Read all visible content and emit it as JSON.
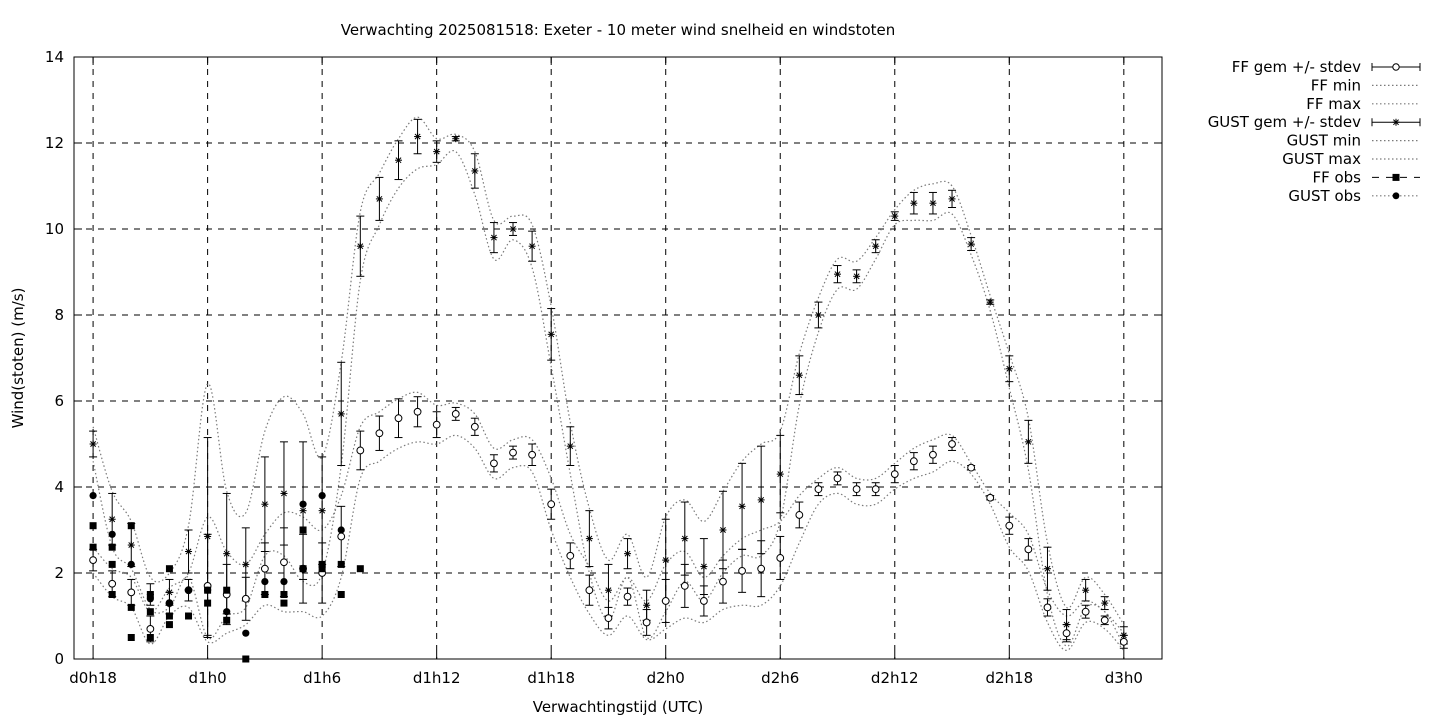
{
  "chart_data": {
    "type": "scatter",
    "title": "Verwachting 2025081518: Exeter - 10 meter wind snelheid en windstoten",
    "xlabel": "Verwachtingstijd (UTC)",
    "ylabel": "Wind(stoten) (m/s)",
    "ylim": [
      0,
      14
    ],
    "xlim": [
      -1,
      56
    ],
    "yticks": [
      0,
      2,
      4,
      6,
      8,
      10,
      12,
      14
    ],
    "xticks": [
      {
        "x": 0,
        "label": "d0h18"
      },
      {
        "x": 6,
        "label": "d1h0"
      },
      {
        "x": 12,
        "label": "d1h6"
      },
      {
        "x": 18,
        "label": "d1h12"
      },
      {
        "x": 24,
        "label": "d1h18"
      },
      {
        "x": 30,
        "label": "d2h0"
      },
      {
        "x": 36,
        "label": "d2h6"
      },
      {
        "x": 42,
        "label": "d2h12"
      },
      {
        "x": 48,
        "label": "d2h18"
      },
      {
        "x": 54,
        "label": "d3h0"
      }
    ],
    "grid": true,
    "legend_position": "right-outside",
    "legend": [
      {
        "label": "FF gem +/- stdev",
        "key": "ff_mean"
      },
      {
        "label": "FF min",
        "key": "ff_min"
      },
      {
        "label": "FF max",
        "key": "ff_max"
      },
      {
        "label": "GUST gem +/- stdev",
        "key": "gust_mean"
      },
      {
        "label": "GUST min",
        "key": "gust_min"
      },
      {
        "label": "GUST max",
        "key": "gust_max"
      },
      {
        "label": "FF obs",
        "key": "ff_obs"
      },
      {
        "label": "GUST obs",
        "key": "gust_obs"
      }
    ],
    "ff_mean": {
      "x": [
        0,
        1,
        2,
        3,
        4,
        5,
        6,
        7,
        8,
        9,
        10,
        11,
        12,
        13,
        14,
        15,
        16,
        17,
        18,
        19,
        20,
        21,
        22,
        23,
        24,
        25,
        26,
        27,
        28,
        29,
        30,
        31,
        32,
        33,
        34,
        35,
        36,
        37,
        38,
        39,
        40,
        41,
        42,
        43,
        44,
        45,
        46,
        47,
        48,
        49,
        50,
        51,
        52,
        53,
        54
      ],
      "y": [
        2.3,
        1.75,
        1.55,
        0.7,
        1.3,
        1.6,
        1.7,
        1.5,
        1.4,
        2.1,
        2.25,
        2.1,
        2.0,
        2.85,
        4.85,
        5.25,
        5.6,
        5.75,
        5.45,
        5.7,
        5.4,
        4.55,
        4.8,
        4.75,
        3.6,
        2.4,
        1.6,
        0.95,
        1.45,
        0.85,
        1.35,
        1.7,
        1.35,
        1.8,
        2.05,
        2.1,
        2.35,
        3.35,
        3.95,
        4.2,
        3.95,
        3.95,
        4.3,
        4.6,
        4.75,
        5.0,
        4.45,
        3.75,
        3.1,
        2.55,
        1.2,
        0.6,
        1.1,
        0.9,
        0.4
      ],
      "sd": [
        0.25,
        0.3,
        0.3,
        0.3,
        0.25,
        0.25,
        1.2,
        0.7,
        0.5,
        0.6,
        0.8,
        0.8,
        0.7,
        0.7,
        0.45,
        0.4,
        0.45,
        0.35,
        0.3,
        0.15,
        0.2,
        0.2,
        0.15,
        0.25,
        0.35,
        0.3,
        0.35,
        0.25,
        0.2,
        0.3,
        0.5,
        0.5,
        0.35,
        0.5,
        0.5,
        0.65,
        0.5,
        0.3,
        0.15,
        0.15,
        0.15,
        0.15,
        0.2,
        0.2,
        0.2,
        0.15,
        0.05,
        0.05,
        0.2,
        0.25,
        0.2,
        0.2,
        0.15,
        0.1,
        0.15
      ]
    },
    "ff_min": {
      "x": [
        0,
        1,
        2,
        3,
        4,
        5,
        6,
        7,
        8,
        9,
        10,
        11,
        12,
        13,
        14,
        15,
        16,
        17,
        18,
        19,
        20,
        21,
        22,
        23,
        24,
        25,
        26,
        27,
        28,
        29,
        30,
        31,
        32,
        33,
        34,
        35,
        36,
        37,
        38,
        39,
        40,
        41,
        42,
        43,
        44,
        45,
        46,
        47,
        48,
        49,
        50,
        51,
        52,
        53,
        54
      ],
      "y": [
        2.0,
        1.45,
        1.2,
        0.35,
        1.0,
        1.2,
        0.4,
        0.6,
        0.8,
        1.25,
        1.1,
        1.1,
        1.0,
        1.9,
        4.2,
        4.6,
        4.9,
        5.05,
        5.0,
        5.2,
        4.9,
        4.2,
        4.45,
        4.35,
        3.0,
        1.9,
        1.05,
        0.55,
        1.0,
        0.45,
        0.7,
        0.95,
        0.85,
        1.15,
        1.25,
        1.25,
        1.7,
        2.7,
        3.6,
        3.85,
        3.6,
        3.6,
        3.95,
        4.2,
        4.35,
        4.6,
        4.3,
        3.6,
        2.6,
        2.05,
        0.85,
        0.2,
        0.85,
        0.7,
        0.2
      ]
    },
    "ff_max": {
      "x": [
        0,
        1,
        2,
        3,
        4,
        5,
        6,
        7,
        8,
        9,
        10,
        11,
        12,
        13,
        14,
        15,
        16,
        17,
        18,
        19,
        20,
        21,
        22,
        23,
        24,
        25,
        26,
        27,
        28,
        29,
        30,
        31,
        32,
        33,
        34,
        35,
        36,
        37,
        38,
        39,
        40,
        41,
        42,
        43,
        44,
        45,
        46,
        47,
        48,
        49,
        50,
        51,
        52,
        53,
        54
      ],
      "y": [
        2.6,
        2.1,
        1.9,
        1.1,
        1.65,
        2.0,
        3.3,
        2.5,
        2.2,
        2.9,
        3.4,
        3.3,
        3.0,
        3.8,
        5.4,
        5.75,
        6.05,
        6.2,
        5.9,
        5.95,
        5.7,
        4.9,
        5.1,
        5.1,
        4.2,
        2.9,
        2.15,
        1.35,
        1.9,
        1.35,
        2.2,
        2.5,
        1.9,
        2.4,
        2.8,
        3.0,
        3.2,
        3.8,
        4.2,
        4.45,
        4.2,
        4.2,
        4.55,
        4.9,
        5.1,
        5.2,
        4.55,
        3.85,
        3.4,
        2.9,
        1.6,
        1.0,
        1.35,
        1.1,
        0.6
      ]
    },
    "gust_mean": {
      "x": [
        0,
        1,
        2,
        3,
        4,
        5,
        6,
        7,
        8,
        9,
        10,
        11,
        12,
        13,
        14,
        15,
        16,
        17,
        18,
        19,
        20,
        21,
        22,
        23,
        24,
        25,
        26,
        27,
        28,
        29,
        30,
        31,
        32,
        33,
        34,
        35,
        36,
        37,
        38,
        39,
        40,
        41,
        42,
        43,
        44,
        45,
        46,
        47,
        48,
        49,
        50,
        51,
        52,
        53,
        54
      ],
      "y": [
        5.0,
        3.25,
        2.65,
        1.5,
        1.55,
        2.5,
        2.85,
        2.45,
        2.2,
        3.6,
        3.85,
        3.45,
        3.45,
        5.7,
        9.6,
        10.7,
        11.6,
        12.15,
        11.8,
        12.1,
        11.35,
        9.8,
        10.0,
        9.6,
        7.55,
        4.95,
        2.8,
        1.6,
        2.45,
        1.25,
        2.3,
        2.8,
        2.15,
        3.0,
        3.55,
        3.7,
        4.3,
        6.6,
        8.0,
        8.95,
        8.9,
        9.6,
        10.3,
        10.6,
        10.6,
        10.7,
        9.65,
        8.3,
        6.75,
        5.05,
        2.1,
        0.8,
        1.6,
        1.3,
        0.55
      ]
    },
    "gust_sd": [
      0.3,
      0.6,
      0.5,
      0.25,
      0.3,
      0.5,
      2.3,
      1.4,
      0.85,
      1.1,
      1.2,
      1.6,
      1.25,
      1.2,
      0.7,
      0.5,
      0.45,
      0.4,
      0.25,
      0.05,
      0.4,
      0.35,
      0.15,
      0.35,
      0.6,
      0.45,
      0.65,
      0.6,
      0.35,
      0.35,
      0.95,
      0.85,
      0.65,
      0.9,
      1.0,
      1.25,
      0.9,
      0.45,
      0.3,
      0.2,
      0.15,
      0.15,
      0.1,
      0.25,
      0.25,
      0.2,
      0.15,
      0.05,
      0.3,
      0.5,
      0.5,
      0.35,
      0.25,
      0.15,
      0.2
    ],
    "gust_min": {
      "x": [
        0,
        1,
        2,
        3,
        4,
        5,
        6,
        7,
        8,
        9,
        10,
        11,
        12,
        13,
        14,
        15,
        16,
        17,
        18,
        19,
        20,
        21,
        22,
        23,
        24,
        25,
        26,
        27,
        28,
        29,
        30,
        31,
        32,
        33,
        34,
        35,
        36,
        37,
        38,
        39,
        40,
        41,
        42,
        43,
        44,
        45,
        46,
        47,
        48,
        49,
        50,
        51,
        52,
        53,
        54
      ],
      "y": [
        4.6,
        2.6,
        2.1,
        1.15,
        1.2,
        1.9,
        0.5,
        1.0,
        1.2,
        2.4,
        2.4,
        1.8,
        2.0,
        4.5,
        8.8,
        10.1,
        10.95,
        11.4,
        11.5,
        11.8,
        10.8,
        9.3,
        9.75,
        9.1,
        6.8,
        4.3,
        2.0,
        0.9,
        1.9,
        0.5,
        1.1,
        1.8,
        1.35,
        2.0,
        2.4,
        2.4,
        3.2,
        5.9,
        7.6,
        8.6,
        8.6,
        9.3,
        10.1,
        10.2,
        10.2,
        10.35,
        9.4,
        8.1,
        6.3,
        4.4,
        1.5,
        0.3,
        1.2,
        1.1,
        0.3
      ]
    },
    "gust_max": {
      "x": [
        0,
        1,
        2,
        3,
        4,
        5,
        6,
        7,
        8,
        9,
        10,
        11,
        12,
        13,
        14,
        15,
        16,
        17,
        18,
        19,
        20,
        21,
        22,
        23,
        24,
        25,
        26,
        27,
        28,
        29,
        30,
        31,
        32,
        33,
        34,
        35,
        36,
        37,
        38,
        39,
        40,
        41,
        42,
        43,
        44,
        45,
        46,
        47,
        48,
        49,
        50,
        51,
        52,
        53,
        54
      ],
      "y": [
        5.4,
        3.9,
        3.2,
        1.9,
        2.0,
        3.1,
        6.4,
        3.9,
        3.4,
        5.3,
        6.1,
        5.7,
        4.7,
        6.9,
        10.4,
        11.3,
        12.1,
        12.6,
        12.1,
        12.2,
        11.8,
        10.2,
        10.3,
        10.1,
        8.2,
        5.5,
        3.5,
        2.3,
        2.9,
        1.9,
        3.3,
        3.7,
        3.2,
        3.9,
        4.6,
        5.0,
        5.3,
        7.1,
        8.4,
        9.3,
        9.25,
        9.8,
        10.45,
        10.9,
        11.05,
        11.0,
        9.85,
        8.45,
        7.1,
        5.6,
        2.7,
        1.2,
        1.9,
        1.5,
        0.8
      ]
    },
    "ff_obs": {
      "x": [
        0,
        0,
        1,
        1,
        1,
        2,
        2,
        2,
        3,
        3,
        3,
        4,
        4,
        4,
        5,
        6,
        6,
        7,
        7,
        8,
        9,
        10,
        10,
        11,
        11,
        12,
        12,
        13,
        13,
        14
      ],
      "y": [
        3.1,
        2.6,
        2.6,
        2.2,
        1.5,
        3.1,
        1.2,
        0.5,
        1.5,
        1.1,
        0.5,
        2.1,
        1.0,
        0.8,
        1.0,
        1.6,
        1.3,
        1.6,
        0.9,
        0.0,
        1.5,
        1.5,
        1.3,
        3.0,
        2.1,
        2.2,
        2.1,
        2.2,
        1.5,
        2.1
      ]
    },
    "gust_obs": {
      "x": [
        0,
        1,
        2,
        3,
        4,
        5,
        6,
        7,
        8,
        9,
        10,
        11,
        12,
        13
      ],
      "y": [
        3.8,
        2.9,
        2.2,
        1.4,
        1.3,
        1.6,
        1.6,
        1.1,
        0.6,
        1.8,
        1.8,
        3.6,
        3.8,
        3.0
      ]
    }
  }
}
